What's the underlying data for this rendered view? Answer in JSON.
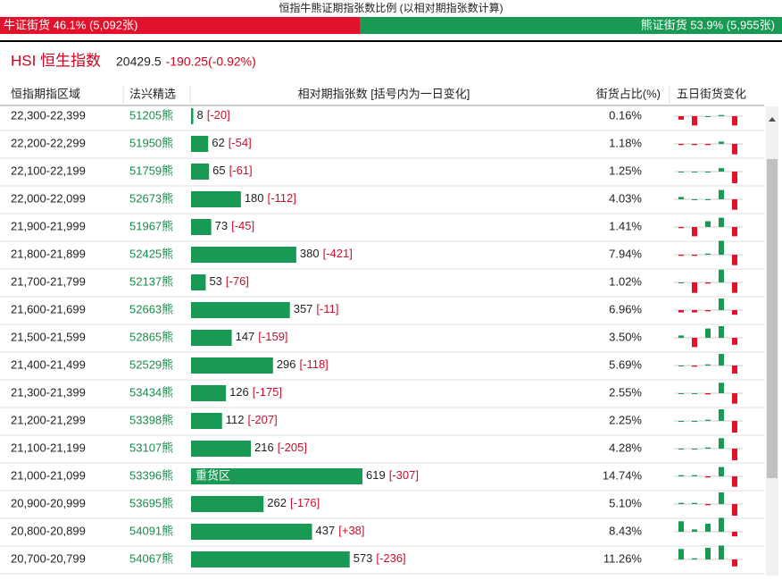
{
  "title": "恒指牛熊证期指张数比例 (以相对期指张数计算)",
  "bull": {
    "text": "牛证街货 46.1% (5,092张)",
    "share": 46.1
  },
  "bear": {
    "text": "熊证街货 53.9% (5,955张)",
    "share": 53.9
  },
  "index": {
    "name": "HSI 恒生指数",
    "price": 20429.5,
    "change": "-190.25(-0.92%)"
  },
  "table": {
    "headers": [
      "恒指期指区域",
      "法兴精选",
      "相对期指张数 [括号内为一日变化]",
      "街货占比(%)",
      "五日街货变化"
    ],
    "rows": [
      {
        "range": "22,300-22,399",
        "code": "51205熊",
        "count": 8,
        "change": "[-20]",
        "share": "0.16%",
        "five_day": [
          -3,
          -8,
          0,
          1,
          -8
        ]
      },
      {
        "range": "22,200-22,299",
        "code": "51950熊",
        "count": 62,
        "change": "[-54]",
        "share": "1.18%",
        "five_day": [
          -1,
          -1,
          -1,
          2,
          -9
        ]
      },
      {
        "range": "22,100-22,199",
        "code": "51759熊",
        "count": 65,
        "change": "[-61]",
        "share": "1.25%",
        "five_day": [
          0,
          0,
          0,
          3,
          -10
        ]
      },
      {
        "range": "22,000-22,099",
        "code": "52673熊",
        "count": 180,
        "change": "[-112]",
        "share": "4.03%",
        "five_day": [
          2,
          0,
          0,
          8,
          -9
        ]
      },
      {
        "range": "21,900-21,999",
        "code": "51967熊",
        "count": 73,
        "change": "[-45]",
        "share": "1.41%",
        "five_day": [
          -1,
          -8,
          5,
          8,
          -8
        ]
      },
      {
        "range": "21,800-21,899",
        "code": "52425熊",
        "count": 380,
        "change": "[-421]",
        "share": "7.94%",
        "five_day": [
          -1,
          -1,
          1,
          12,
          -9
        ]
      },
      {
        "range": "21,700-21,799",
        "code": "52137熊",
        "count": 53,
        "change": "[-76]",
        "share": "1.02%",
        "five_day": [
          0,
          -9,
          -1,
          11,
          -9
        ]
      },
      {
        "range": "21,600-21,699",
        "code": "52663熊",
        "count": 357,
        "change": "[-11]",
        "share": "6.96%",
        "five_day": [
          -2,
          -2,
          -1,
          10,
          -4
        ]
      },
      {
        "range": "21,500-21,599",
        "code": "52865熊",
        "count": 147,
        "change": "[-159]",
        "share": "3.50%",
        "five_day": [
          2,
          -8,
          8,
          10,
          -6
        ]
      },
      {
        "range": "21,400-21,499",
        "code": "52529熊",
        "count": 296,
        "change": "[-118]",
        "share": "5.69%",
        "five_day": [
          0,
          -1,
          1,
          10,
          -7
        ]
      },
      {
        "range": "21,300-21,399",
        "code": "53434熊",
        "count": 126,
        "change": "[-175]",
        "share": "2.55%",
        "five_day": [
          0,
          0,
          -1,
          9,
          -9
        ]
      },
      {
        "range": "21,200-21,299",
        "code": "53398熊",
        "count": 112,
        "change": "[-207]",
        "share": "2.25%",
        "five_day": [
          0,
          0,
          1,
          10,
          -10
        ]
      },
      {
        "range": "21,100-21,199",
        "code": "53107熊",
        "count": 216,
        "change": "[-205]",
        "share": "4.28%",
        "five_day": [
          0,
          0,
          1,
          9,
          -10
        ]
      },
      {
        "range": "21,000-21,099",
        "code": "53396熊",
        "count": 619,
        "change": "[-307]",
        "share": "14.74%",
        "heavy": "重货区",
        "five_day": [
          1,
          1,
          -1,
          8,
          -9
        ]
      },
      {
        "range": "20,900-20,999",
        "code": "53695熊",
        "count": 262,
        "change": "[-176]",
        "share": "5.10%",
        "five_day": [
          1,
          1,
          -1,
          10,
          -10
        ]
      },
      {
        "range": "20,800-20,899",
        "code": "54091熊",
        "count": 437,
        "change": "[+38]",
        "share": "8.43%",
        "five_day": [
          9,
          2,
          7,
          12,
          -4
        ]
      },
      {
        "range": "20,700-20,799",
        "code": "54067熊",
        "count": 573,
        "change": "[-236]",
        "share": "11.26%",
        "five_day": [
          9,
          1,
          10,
          12,
          -6
        ]
      }
    ]
  }
}
